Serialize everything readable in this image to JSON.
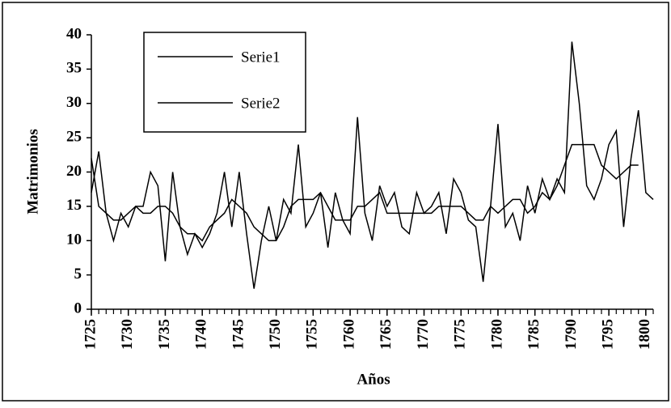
{
  "chart_data": {
    "type": "line",
    "y_label": "Matrimonios",
    "x_label": "Años",
    "x": [
      1725,
      1726,
      1727,
      1728,
      1729,
      1730,
      1731,
      1732,
      1733,
      1734,
      1735,
      1736,
      1737,
      1738,
      1739,
      1740,
      1741,
      1742,
      1743,
      1744,
      1745,
      1746,
      1747,
      1748,
      1749,
      1750,
      1751,
      1752,
      1753,
      1754,
      1755,
      1756,
      1757,
      1758,
      1759,
      1760,
      1761,
      1762,
      1763,
      1764,
      1765,
      1766,
      1767,
      1768,
      1769,
      1770,
      1771,
      1772,
      1773,
      1774,
      1775,
      1776,
      1777,
      1778,
      1779,
      1780,
      1781,
      1782,
      1783,
      1784,
      1785,
      1786,
      1787,
      1788,
      1789,
      1790,
      1791,
      1792,
      1793,
      1794,
      1795,
      1796,
      1797,
      1798,
      1799,
      1800,
      1801
    ],
    "series": [
      {
        "name": "Serie1",
        "color": "#000000",
        "values": [
          17,
          23,
          14,
          10,
          14,
          12,
          15,
          15,
          20,
          18,
          7,
          20,
          12,
          8,
          11,
          9,
          11,
          14,
          20,
          12,
          20,
          11,
          3,
          10,
          15,
          10,
          16,
          14,
          24,
          12,
          14,
          17,
          9,
          17,
          13,
          11,
          28,
          14,
          10,
          18,
          15,
          17,
          12,
          11,
          17,
          14,
          15,
          17,
          11,
          19,
          17,
          13,
          12,
          4,
          15,
          27,
          12,
          14,
          10,
          18,
          14,
          19,
          16,
          19,
          17,
          39,
          30,
          18,
          16,
          19,
          24,
          26,
          12,
          22,
          29,
          17,
          16
        ]
      },
      {
        "name": "Serie2",
        "color": "#000000",
        "values": [
          22,
          15,
          14,
          13,
          13,
          14,
          15,
          14,
          14,
          15,
          15,
          14,
          12,
          11,
          11,
          10,
          12,
          13,
          14,
          16,
          15,
          14,
          12,
          11,
          10,
          10,
          12,
          15,
          16,
          16,
          16,
          17,
          15,
          13,
          13,
          13,
          15,
          15,
          16,
          17,
          14,
          14,
          14,
          14,
          14,
          14,
          14,
          15,
          15,
          15,
          15,
          14,
          13,
          13,
          15,
          14,
          15,
          16,
          16,
          14,
          15,
          17,
          16,
          18,
          21,
          24,
          24,
          24,
          24,
          21,
          20,
          19,
          20,
          21,
          21,
          null,
          null
        ]
      }
    ],
    "xlim": [
      1725,
      1801
    ],
    "xticks": [
      1725,
      1730,
      1735,
      1740,
      1745,
      1750,
      1755,
      1760,
      1765,
      1770,
      1775,
      1780,
      1785,
      1790,
      1795,
      1800
    ],
    "ylim": [
      0,
      40
    ],
    "yticks": [
      0,
      5,
      10,
      15,
      20,
      25,
      30,
      35,
      40
    ],
    "legend": "top-left"
  }
}
